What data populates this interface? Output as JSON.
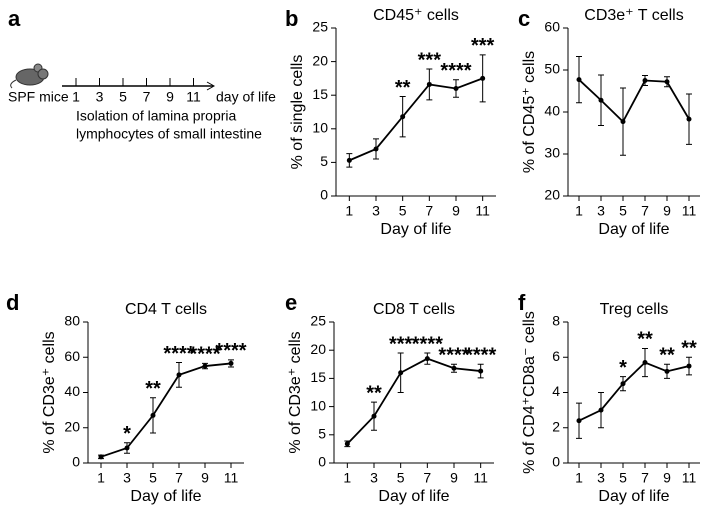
{
  "timeline": {
    "label": "a",
    "subject": "SPF mice",
    "days": [
      1,
      3,
      5,
      7,
      9,
      11
    ],
    "axis_label": "day of life",
    "description": [
      "Isolation of  lamina propria",
      "lymphocytes of small intestine"
    ]
  },
  "chart_data": [
    {
      "type": "line",
      "label": "b",
      "title": "CD45⁺ cells",
      "x_label": "Day of  life",
      "y_label": "% of single cells",
      "x": [
        1,
        3,
        5,
        7,
        9,
        11
      ],
      "xlim": [
        0,
        12
      ],
      "xticks": [
        1,
        3,
        5,
        7,
        9,
        11
      ],
      "ylim": [
        0,
        25
      ],
      "yticks": [
        0,
        5,
        10,
        15,
        20,
        25
      ],
      "series": [
        {
          "color": "#000000",
          "values": [
            5.3,
            7.0,
            11.8,
            16.6,
            16.0,
            17.5
          ],
          "errors": [
            1.0,
            1.5,
            3.0,
            2.3,
            1.3,
            3.5
          ]
        }
      ],
      "annotations": [
        {
          "x": 5,
          "text": "**"
        },
        {
          "x": 7,
          "text": "***"
        },
        {
          "x": 9,
          "text": "****"
        },
        {
          "x": 11,
          "text": "***"
        }
      ]
    },
    {
      "type": "line",
      "label": "c",
      "title": "CD3e⁺ T cells",
      "x_label": "Day of  life",
      "y_label": "% of CD45⁺ cells",
      "x": [
        1,
        3,
        5,
        7,
        9,
        11
      ],
      "xlim": [
        0,
        12
      ],
      "xticks": [
        1,
        3,
        5,
        7,
        9,
        11
      ],
      "ylim": [
        20,
        60
      ],
      "yticks": [
        20,
        30,
        40,
        50,
        60
      ],
      "series": [
        {
          "color": "#000000",
          "values": [
            47.7,
            42.8,
            37.7,
            47.5,
            47.2,
            38.3
          ],
          "errors": [
            5.5,
            6.0,
            8.0,
            1.2,
            1.2,
            6.0
          ]
        }
      ],
      "annotations": []
    },
    {
      "type": "line",
      "label": "d",
      "title": "CD4 T cells",
      "x_label": "Day of  life",
      "y_label": "% of CD3e⁺ cells",
      "x": [
        1,
        3,
        5,
        7,
        9,
        11
      ],
      "xlim": [
        0,
        12
      ],
      "xticks": [
        1,
        3,
        5,
        7,
        9,
        11
      ],
      "ylim": [
        0,
        80
      ],
      "yticks": [
        0,
        20,
        40,
        60,
        80
      ],
      "series": [
        {
          "color": "#000000",
          "values": [
            3.5,
            8.5,
            27,
            50,
            55,
            56.5
          ],
          "errors": [
            1.0,
            3.0,
            10.0,
            7.0,
            1.5,
            2.0
          ]
        }
      ],
      "annotations": [
        {
          "x": 3,
          "text": "*"
        },
        {
          "x": 5,
          "text": "**"
        },
        {
          "x": 7,
          "text": "****"
        },
        {
          "x": 9,
          "text": "****"
        },
        {
          "x": 11,
          "text": "****"
        }
      ]
    },
    {
      "type": "line",
      "label": "e",
      "title": "CD8 T cells",
      "x_label": "Day of  life",
      "y_label": "% of CD3e⁺ cells",
      "x": [
        1,
        3,
        5,
        7,
        9,
        11
      ],
      "xlim": [
        0,
        12
      ],
      "xticks": [
        1,
        3,
        5,
        7,
        9,
        11
      ],
      "ylim": [
        0,
        25
      ],
      "yticks": [
        0,
        5,
        10,
        15,
        20,
        25
      ],
      "series": [
        {
          "color": "#000000",
          "values": [
            3.4,
            8.3,
            16.0,
            18.5,
            16.8,
            16.3
          ],
          "errors": [
            0.5,
            2.5,
            3.5,
            1.0,
            0.7,
            1.2
          ]
        }
      ],
      "annotations": [
        {
          "x": 3,
          "text": "**"
        },
        {
          "x": 5,
          "text": "***"
        },
        {
          "x": 7,
          "text": "****"
        },
        {
          "x": 9,
          "text": "****"
        },
        {
          "x": 11,
          "text": "****"
        }
      ]
    },
    {
      "type": "line",
      "label": "f",
      "title": "Treg cells",
      "x_label": "Day of  life",
      "y_label": "% of CD4⁺CD8a⁻ cells",
      "x": [
        1,
        3,
        5,
        7,
        9,
        11
      ],
      "xlim": [
        0,
        12
      ],
      "xticks": [
        1,
        3,
        5,
        7,
        9,
        11
      ],
      "ylim": [
        0,
        8
      ],
      "yticks": [
        0,
        2,
        4,
        6,
        8
      ],
      "series": [
        {
          "color": "#000000",
          "values": [
            2.4,
            3.0,
            4.5,
            5.7,
            5.2,
            5.5
          ],
          "errors": [
            1.0,
            1.0,
            0.4,
            0.8,
            0.4,
            0.5
          ]
        }
      ],
      "annotations": [
        {
          "x": 5,
          "text": "*"
        },
        {
          "x": 7,
          "text": "**"
        },
        {
          "x": 9,
          "text": "**"
        },
        {
          "x": 11,
          "text": "**"
        }
      ]
    }
  ]
}
